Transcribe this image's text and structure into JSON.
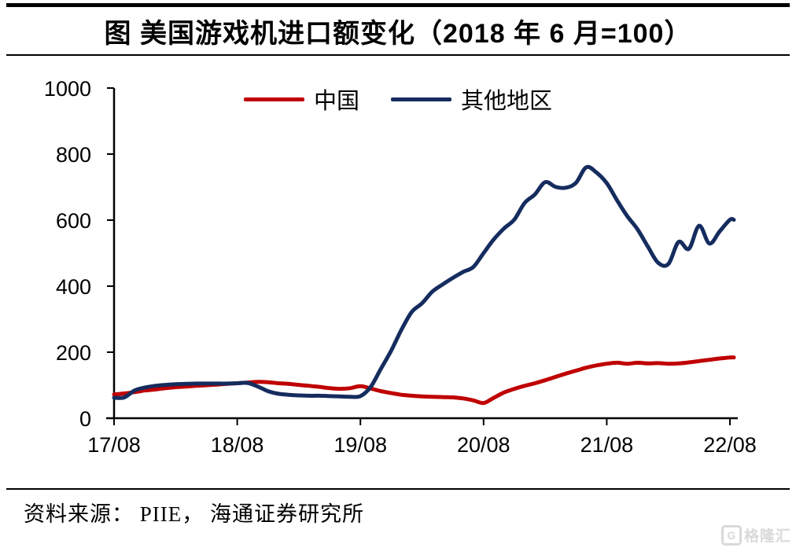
{
  "title": "图 美国游戏机进口额变化（2018 年 6 月=100）",
  "source": "资料来源： PIIE， 海通证券研究所",
  "watermark": {
    "icon": "gelonghui-logo",
    "icon_letter": "G",
    "text": "格隆汇",
    "color": "#d9d9d9"
  },
  "colors": {
    "background": "#ffffff",
    "axis": "#000000",
    "china_line": "#c00000",
    "other_line": "#152c5e"
  },
  "chart_data": {
    "type": "line",
    "title": "图 美国游戏机进口额变化（2018 年 6 月=100）",
    "xlabel": "",
    "ylabel": "",
    "ylim": [
      0,
      1000
    ],
    "y_ticks": [
      0,
      200,
      400,
      600,
      800,
      1000
    ],
    "x_tick_labels": [
      "17/08",
      "18/08",
      "19/08",
      "20/08",
      "21/08",
      "22/08"
    ],
    "x_unit": "monthly points, 12 per axis interval",
    "grid": false,
    "legend_position": "top-center",
    "series": [
      {
        "name": "中国",
        "color": "#c00000",
        "values": [
          72,
          75,
          79,
          84,
          87,
          91,
          94,
          96,
          98,
          100,
          102,
          104,
          106,
          108,
          110,
          109,
          106,
          104,
          101,
          98,
          95,
          91,
          89,
          91,
          97,
          90,
          82,
          76,
          71,
          68,
          66,
          65,
          64,
          63,
          60,
          54,
          46,
          62,
          78,
          89,
          98,
          106,
          115,
          125,
          135,
          144,
          153,
          160,
          165,
          168,
          165,
          168,
          166,
          167,
          165,
          166,
          169,
          173,
          177,
          181,
          184
        ]
      },
      {
        "name": "其他地区",
        "color": "#152c5e",
        "values": [
          62,
          63,
          84,
          93,
          98,
          101,
          103,
          104,
          105,
          105,
          105,
          105,
          106,
          107,
          96,
          82,
          74,
          71,
          69,
          68,
          68,
          67,
          66,
          65,
          67,
          95,
          150,
          205,
          268,
          322,
          348,
          383,
          405,
          425,
          443,
          458,
          500,
          542,
          575,
          602,
          652,
          678,
          715,
          701,
          698,
          713,
          760,
          744,
          712,
          660,
          612,
          572,
          520,
          471,
          467,
          534,
          513,
          583,
          529,
          566,
          601
        ]
      }
    ]
  }
}
